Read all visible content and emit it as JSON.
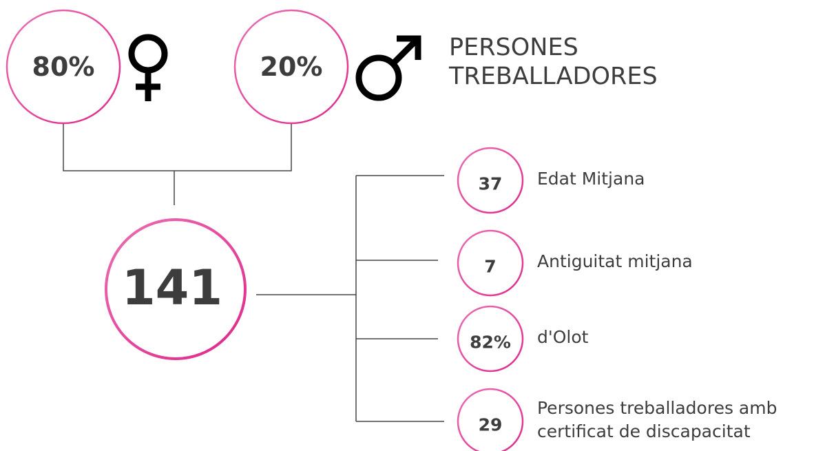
{
  "gender": [
    {
      "value": "80%"
    },
    {
      "value": "20%"
    }
  ],
  "title": [
    "PERSONES",
    "TREBALLADORES"
  ],
  "total": "141",
  "stats": [
    {
      "value": "37",
      "label": "Edat Mitjana"
    },
    {
      "value": "7",
      "label": "Antiguitat mitjana"
    },
    {
      "value": "82%",
      "label": "d'Olot"
    },
    {
      "value": "29",
      "label": "Persones treballadores amb certificat de discapacitat"
    }
  ]
}
